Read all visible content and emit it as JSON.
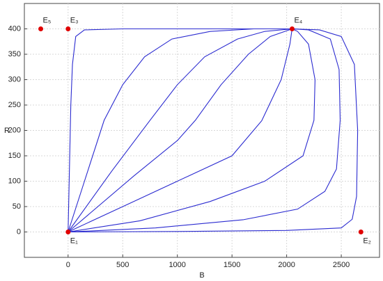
{
  "chart_data": {
    "type": "line",
    "x_label": "B",
    "y_label": "R",
    "xlim": [
      -400,
      2850
    ],
    "ylim": [
      -50,
      450
    ],
    "xticks": [
      0,
      500,
      1000,
      1500,
      2000,
      2500
    ],
    "yticks": [
      0,
      50,
      100,
      150,
      200,
      250,
      300,
      350,
      400
    ],
    "grid": true,
    "color": "#2a2ad0",
    "lines": [
      {
        "x": [
          0,
          10,
          25,
          40,
          70,
          150,
          500,
          1500,
          2050
        ],
        "y": [
          0,
          100,
          250,
          330,
          385,
          398,
          400,
          400,
          400
        ]
      },
      {
        "x": [
          0,
          150,
          330,
          500,
          700,
          950,
          1300,
          1700,
          2050
        ],
        "y": [
          0,
          100,
          220,
          290,
          345,
          380,
          395,
          400,
          400
        ]
      },
      {
        "x": [
          0,
          400,
          750,
          1000,
          1250,
          1550,
          1800,
          2050
        ],
        "y": [
          0,
          120,
          220,
          290,
          345,
          380,
          395,
          400
        ]
      },
      {
        "x": [
          0,
          600,
          1000,
          1165,
          1400,
          1650,
          1850,
          2050
        ],
        "y": [
          0,
          110,
          180,
          220,
          290,
          350,
          385,
          400
        ]
      },
      {
        "x": [
          0,
          600,
          1100,
          1500,
          1772,
          1950,
          2030,
          2050
        ],
        "y": [
          0,
          60,
          110,
          150,
          219,
          300,
          370,
          400
        ]
      },
      {
        "x": [
          0,
          658,
          1300,
          1800,
          2150,
          2250,
          2260,
          2200,
          2100,
          2050
        ],
        "y": [
          0,
          22,
          60,
          100,
          150,
          220,
          300,
          370,
          395,
          400
        ]
      },
      {
        "x": [
          0,
          800,
          1601,
          2100,
          2350,
          2456,
          2490,
          2480,
          2400,
          2200,
          2050
        ],
        "y": [
          0,
          8,
          24,
          45,
          80,
          124,
          220,
          320,
          380,
          398,
          400
        ]
      },
      {
        "x": [
          0,
          1000,
          2000,
          2500,
          2600,
          2640,
          2650,
          2620,
          2500,
          2300,
          2050
        ],
        "y": [
          0,
          1,
          3,
          8,
          25,
          70,
          200,
          330,
          385,
          398,
          400
        ]
      }
    ],
    "points": {
      "color": "#e00000",
      "labels": [
        "E₁",
        "E₂",
        "E₃",
        "E₄",
        "E₅"
      ],
      "x": [
        0,
        2680,
        0,
        2050,
        -250
      ],
      "y": [
        0,
        0,
        400,
        400,
        400
      ]
    }
  }
}
